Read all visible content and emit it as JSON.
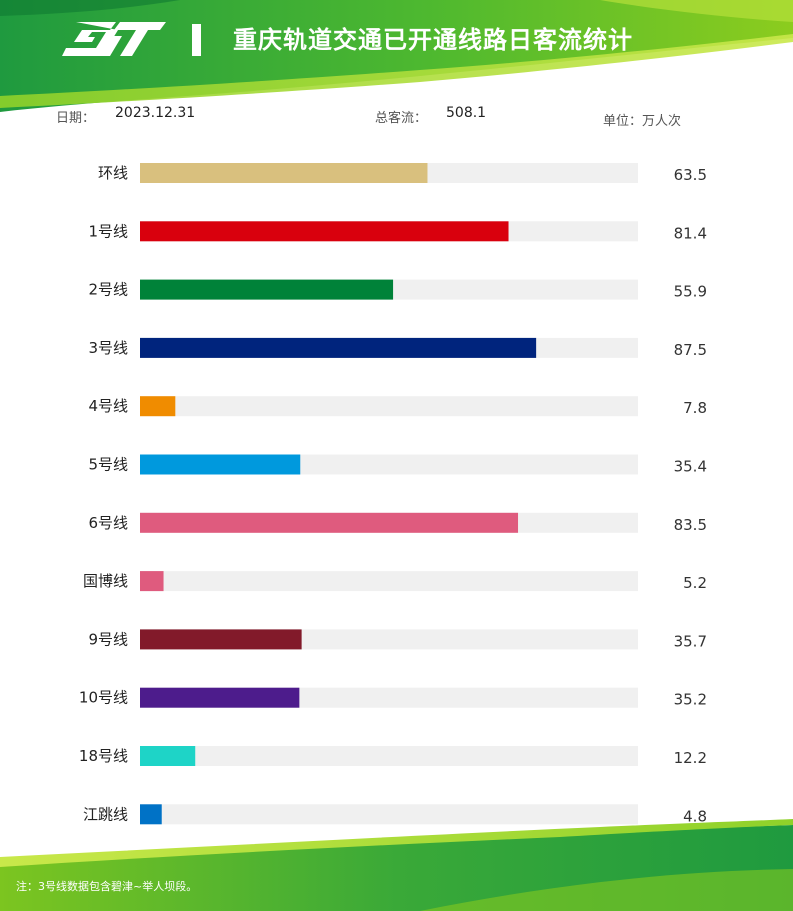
{
  "header": {
    "title": "重庆轨道交通已开通线路日客流统计"
  },
  "meta": {
    "date_label": "日期：",
    "date_value": "2023.12.31",
    "total_label": "总客流：",
    "total_value": "508.1",
    "unit_label": "单位：万人次"
  },
  "footer": {
    "note": "注：3号线数据包含碧津~举人坝段。"
  },
  "colors": {
    "header_green_dark": "#1f9a3f",
    "header_green_light": "#8ccc1e",
    "track": "#f0f0f0"
  },
  "chart_data": {
    "type": "bar",
    "orientation": "horizontal",
    "title": "重庆轨道交通已开通线路日客流统计",
    "categories": [
      "环线",
      "1号线",
      "2号线",
      "3号线",
      "4号线",
      "5号线",
      "6号线",
      "国博线",
      "9号线",
      "10号线",
      "18号线",
      "江跳线"
    ],
    "value_labels": [
      "63.5",
      "81.4",
      "55.9",
      "87.5",
      "7.8",
      "35.4",
      "83.5",
      "5.2",
      "35.7",
      "35.2",
      "12.2",
      "4.8"
    ],
    "values": [
      63.5,
      81.4,
      55.9,
      87.5,
      7.8,
      35.4,
      83.5,
      5.2,
      35.7,
      35.2,
      12.2,
      4.8
    ],
    "colors": [
      "#d9c07e",
      "#d9000d",
      "#008239",
      "#00247d",
      "#f08c00",
      "#0099dd",
      "#df5b7e",
      "#df5b7e",
      "#821a2a",
      "#4d1c8c",
      "#1ed4c7",
      "#0072c6"
    ],
    "xlim": [
      0,
      110
    ],
    "unit": "万人次",
    "grid": false,
    "legend": "none"
  }
}
